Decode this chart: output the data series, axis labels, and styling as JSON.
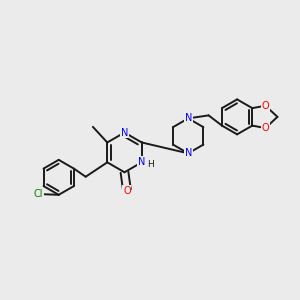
{
  "bg_color": "#ebebeb",
  "bond_color": "#1a1a1a",
  "N_color": "#0000ff",
  "O_color": "#ff0000",
  "Cl_color": "#008000",
  "lw": 1.4,
  "dbo": 0.013,
  "fs": 7.0,
  "figsize": [
    3.0,
    3.0
  ],
  "dpi": 100,
  "xlim": [
    0,
    1
  ],
  "ylim": [
    0,
    1
  ]
}
